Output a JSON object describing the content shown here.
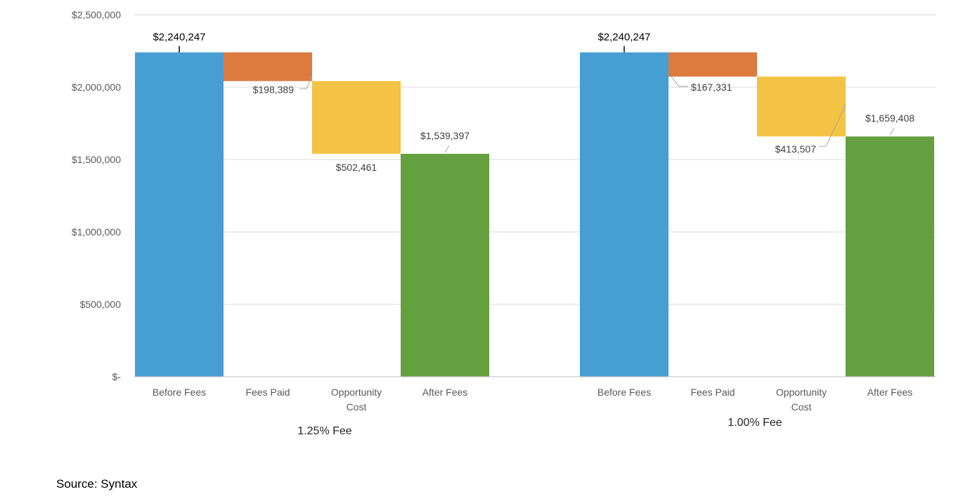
{
  "chart_data": {
    "type": "bar",
    "subtype": "waterfall",
    "title": "",
    "xlabel": "",
    "ylabel": "",
    "ylim": [
      0,
      2500000
    ],
    "yticks": [
      0,
      500000,
      1000000,
      1500000,
      2000000,
      2500000
    ],
    "ytick_labels": [
      "$-",
      "$500,000",
      "$1,000,000",
      "$1,500,000",
      "$2,000,000",
      "$2,500,000"
    ],
    "grid": true,
    "legend": "none",
    "categories": [
      "Before Fees",
      "Fees Paid",
      "Opportunity Cost",
      "After Fees"
    ],
    "category_labels": [
      [
        "Before Fees"
      ],
      [
        "Fees Paid"
      ],
      [
        "Opportunity",
        "Cost"
      ],
      [
        "After Fees"
      ]
    ],
    "groups": [
      {
        "name": "1.25% Fee",
        "bars": [
          {
            "category": "Before Fees",
            "role": "total",
            "value": 2240247,
            "label": "$2,240,247"
          },
          {
            "category": "Fees Paid",
            "role": "decrease",
            "value": 198389,
            "label": "$198,389"
          },
          {
            "category": "Opportunity Cost",
            "role": "decrease",
            "value": 502461,
            "label": "$502,461"
          },
          {
            "category": "After Fees",
            "role": "total",
            "value": 1539397,
            "label": "$1,539,397"
          }
        ]
      },
      {
        "name": "1.00% Fee",
        "bars": [
          {
            "category": "Before Fees",
            "role": "total",
            "value": 2240247,
            "label": "$2,240,247"
          },
          {
            "category": "Fees Paid",
            "role": "decrease",
            "value": 167331,
            "label": "$167,331"
          },
          {
            "category": "Opportunity Cost",
            "role": "decrease",
            "value": 413507,
            "label": "$413,507"
          },
          {
            "category": "After Fees",
            "role": "total",
            "value": 1659408,
            "label": "$1,659,408"
          }
        ]
      }
    ],
    "colors": {
      "Before Fees": "#479ed3",
      "Fees Paid": "#dd7a40",
      "Opportunity Cost": "#f4c344",
      "After Fees": "#649f40"
    }
  },
  "source": "Source: Syntax"
}
